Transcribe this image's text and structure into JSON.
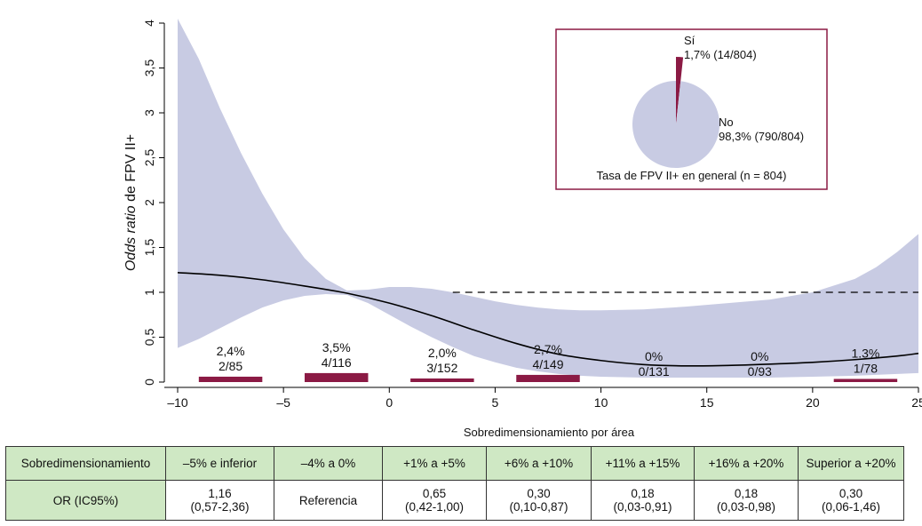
{
  "chart_data": {
    "type": "line",
    "ylabel_italic": "Odds ratio",
    "ylabel_rest": " de FPV II+",
    "xlabel": "Sobredimensionamiento por área",
    "xlim": [
      -10,
      25
    ],
    "ylim": [
      0,
      4
    ],
    "xticks": [
      -10,
      -5,
      0,
      5,
      10,
      15,
      20,
      25
    ],
    "xtick_labels": [
      "–10",
      "–5",
      "0",
      "5",
      "10",
      "15",
      "20",
      "25"
    ],
    "yticks": [
      0,
      0.5,
      1,
      1.5,
      2,
      2.5,
      3,
      3.5,
      4
    ],
    "ytick_labels": [
      "0",
      "0,5",
      "1",
      "1,5",
      "2",
      "2,5",
      "3",
      "3,5",
      "4"
    ],
    "reference_line": {
      "y": 1,
      "x_from": 3,
      "x_to": 25,
      "style": "dashed"
    },
    "or_curve": {
      "x": [
        -10,
        -8,
        -6,
        -4,
        -2,
        0,
        2,
        4,
        6,
        8,
        10,
        12,
        14,
        16,
        18,
        20,
        22,
        24,
        25
      ],
      "y": [
        1.22,
        1.19,
        1.14,
        1.07,
        0.99,
        0.88,
        0.74,
        0.58,
        0.43,
        0.31,
        0.24,
        0.195,
        0.18,
        0.185,
        0.2,
        0.22,
        0.25,
        0.29,
        0.32
      ]
    },
    "ci_band": {
      "x": [
        -10,
        -9,
        -8,
        -7,
        -6,
        -5,
        -4,
        -3,
        -2,
        -1,
        0,
        1,
        2,
        3,
        4,
        5,
        6,
        7,
        8,
        9,
        10,
        12,
        14,
        16,
        18,
        20,
        22,
        23,
        24,
        25
      ],
      "upper": [
        4.05,
        3.6,
        3.05,
        2.55,
        2.1,
        1.7,
        1.38,
        1.15,
        1.02,
        1.03,
        1.06,
        1.06,
        1.04,
        1.0,
        0.95,
        0.9,
        0.86,
        0.83,
        0.81,
        0.8,
        0.8,
        0.81,
        0.84,
        0.88,
        0.92,
        1.0,
        1.15,
        1.28,
        1.45,
        1.65
      ],
      "lower": [
        0.38,
        0.48,
        0.6,
        0.72,
        0.83,
        0.91,
        0.96,
        0.98,
        0.97,
        0.88,
        0.75,
        0.62,
        0.5,
        0.39,
        0.29,
        0.22,
        0.16,
        0.12,
        0.09,
        0.07,
        0.06,
        0.05,
        0.05,
        0.05,
        0.05,
        0.06,
        0.07,
        0.08,
        0.09,
        0.1
      ]
    },
    "bars": [
      {
        "x_from": -9,
        "x_to": -6,
        "value": 0.06,
        "pct": "2,4%",
        "count": "2/85"
      },
      {
        "x_from": -4,
        "x_to": -1,
        "value": 0.1,
        "pct": "3,5%",
        "count": "4/116"
      },
      {
        "x_from": 1,
        "x_to": 4,
        "value": 0.04,
        "pct": "2,0%",
        "count": "3/152"
      },
      {
        "x_from": 6,
        "x_to": 9,
        "value": 0.08,
        "pct": "2,7%",
        "count": "4/149"
      },
      {
        "x_from": 11,
        "x_to": 14,
        "value": 0,
        "pct": "0%",
        "count": "0/131"
      },
      {
        "x_from": 16,
        "x_to": 19,
        "value": 0,
        "pct": "0%",
        "count": "0/93"
      },
      {
        "x_from": 21,
        "x_to": 24,
        "value": 0.035,
        "pct": "1.3%",
        "count": "1/78"
      }
    ],
    "inset_pie": {
      "title": "Tasa de FPV II+ en general (n = 804)",
      "slices": [
        {
          "name": "Sí",
          "value": 1.7,
          "label": "1,7% (14/804)",
          "color": "#8b1a44"
        },
        {
          "name": "No",
          "value": 98.3,
          "label": "98,3% (790/804)",
          "color": "#c8cbe3"
        }
      ]
    }
  },
  "colors": {
    "band": "#c8cbe3",
    "bar": "#8b1a44",
    "line": "#000000",
    "inset_border": "#8b1a44"
  },
  "table": {
    "header": [
      "Sobredimensionamiento",
      "–5% e inferior",
      "–4% a 0%",
      "+1% a +5%",
      "+6% a +10%",
      "+11% a +15%",
      "+16% a +20%",
      "Superior a +20%"
    ],
    "row_label": "OR (IC95%)",
    "rows": [
      {
        "or": "1,16",
        "ci": "(0,57-2,36)"
      },
      {
        "or": "Referencia",
        "ci": ""
      },
      {
        "or": "0,65",
        "ci": "(0,42-1,00)"
      },
      {
        "or": "0,30",
        "ci": "(0,10-0,87)"
      },
      {
        "or": "0,18",
        "ci": "(0,03-0,91)"
      },
      {
        "or": "0,18",
        "ci": "(0,03-0,98)"
      },
      {
        "or": "0,30",
        "ci": "(0,06-1,46)"
      }
    ]
  }
}
